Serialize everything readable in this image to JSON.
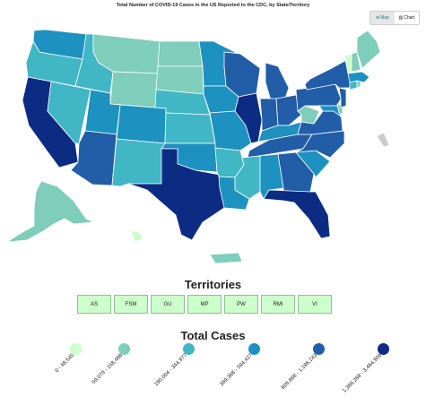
{
  "title": "Total Number of COVID-19 Cases in the US Reported to the CDC, by State/Territory",
  "view_toggle": {
    "map_label": "Map",
    "chart_label": "Chart",
    "active": "Map"
  },
  "territories_title": "Territories",
  "territories": [
    {
      "code": "AS",
      "bin": 0
    },
    {
      "code": "FSM",
      "bin": 0
    },
    {
      "code": "GU",
      "bin": 0
    },
    {
      "code": "MP",
      "bin": 0
    },
    {
      "code": "PW",
      "bin": 0
    },
    {
      "code": "RMI",
      "bin": 0
    },
    {
      "code": "VI",
      "bin": 0
    }
  ],
  "legend_title": "Total Cases",
  "legend": [
    {
      "label": "0 - 48,545",
      "color": "#ccffcc"
    },
    {
      "label": "59,079 - 158,468",
      "color": "#7fcdbb"
    },
    {
      "label": "190,004 - 344,977",
      "color": "#41b6c4"
    },
    {
      "label": "369,368 - 594,427",
      "color": "#1d91c0"
    },
    {
      "label": "609,668 - 1,186,243",
      "color": "#225ea8"
    },
    {
      "label": "1,366,268 - 3,464,909",
      "color": "#0c2c84"
    }
  ],
  "states": {
    "WA": 3,
    "OR": 2,
    "CA": 5,
    "NV": 2,
    "ID": 2,
    "MT": 1,
    "WY": 1,
    "UT": 3,
    "AZ": 4,
    "NM": 2,
    "CO": 3,
    "ND": 1,
    "SD": 1,
    "NE": 2,
    "KS": 2,
    "OK": 3,
    "TX": 5,
    "MN": 3,
    "IA": 3,
    "MO": 3,
    "AR": 2,
    "LA": 3,
    "WI": 4,
    "IL": 5,
    "MI": 4,
    "IN": 4,
    "OH": 4,
    "KY": 3,
    "TN": 4,
    "MS": 2,
    "AL": 3,
    "GA": 4,
    "FL": 5,
    "SC": 3,
    "NC": 4,
    "VA": 4,
    "WV": 1,
    "PA": 4,
    "NY": 4,
    "NJ": 4,
    "MD": 3,
    "DE": 1,
    "CT": 2,
    "RI": 1,
    "MA": 3,
    "VT": 0,
    "NH": 1,
    "ME": 1,
    "AK": 1,
    "HI": 0,
    "PR": 1
  }
}
